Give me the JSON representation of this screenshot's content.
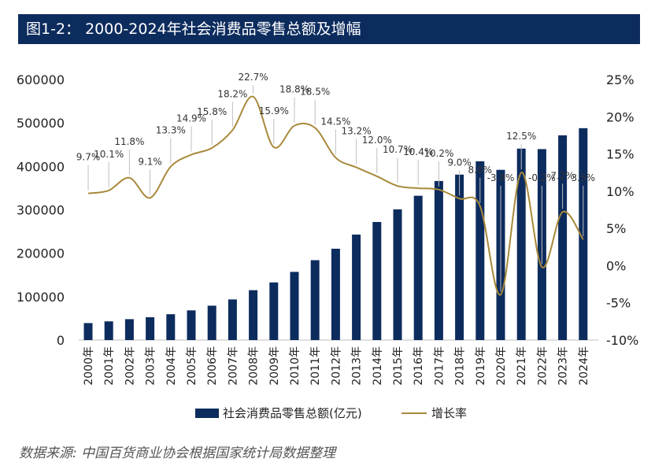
{
  "header": {
    "title": "图1-2：  2000-2024年社会消费品零售总额及增幅"
  },
  "source": "数据来源: 中国百货商业协会根据国家统计局数据整理",
  "chart_data": {
    "type": "bar+line",
    "categories": [
      "2000年",
      "2001年",
      "2002年",
      "2003年",
      "2004年",
      "2005年",
      "2006年",
      "2007年",
      "2008年",
      "2009年",
      "2010年",
      "2011年",
      "2012年",
      "2013年",
      "2014年",
      "2015年",
      "2016年",
      "2017年",
      "2018年",
      "2019年",
      "2020年",
      "2021年",
      "2022年",
      "2023年",
      "2024年"
    ],
    "series": [
      {
        "name": "社会消费品零售总额(亿元)",
        "axis": "left",
        "type": "bar",
        "color": "#0d2c5e",
        "values": [
          39106,
          43055,
          48136,
          52516,
          59501,
          68353,
          79145,
          93572,
          114830,
          132678,
          156998,
          183919,
          210307,
          242843,
          271896,
          300931,
          332316,
          366262,
          380987,
          411649,
          391981,
          440823,
          439733,
          471495,
          487895
        ]
      },
      {
        "name": "增长率",
        "axis": "right",
        "type": "line",
        "color": "#a8893b",
        "values": [
          9.7,
          10.1,
          11.8,
          9.1,
          13.3,
          14.9,
          15.8,
          18.2,
          22.7,
          15.9,
          18.8,
          18.5,
          14.5,
          13.2,
          12.0,
          10.7,
          10.4,
          10.2,
          9.0,
          8.0,
          -3.9,
          12.5,
          -0.2,
          7.2,
          3.5
        ],
        "labels": [
          "9.7%",
          "10.1%",
          "11.8%",
          "9.1%",
          "13.3%",
          "14.9%",
          "15.8%",
          "18.2%",
          "22.7%",
          "15.9%",
          "18.8%",
          "18.5%",
          "14.5%",
          "13.2%",
          "12.0%",
          "10.7%",
          "10.4%",
          "10.2%",
          "9.0%",
          "8.0%",
          "-3.9%",
          "12.5%",
          "-0.2%",
          "7.2%",
          "3.5%"
        ]
      }
    ],
    "y_left": {
      "ylim": [
        0,
        600000
      ],
      "ticks": [
        "0",
        "100000",
        "200000",
        "300000",
        "400000",
        "500000",
        "600000"
      ]
    },
    "y_right": {
      "ylim": [
        -10,
        25
      ],
      "ticks": [
        "-10%",
        "-5%",
        "0%",
        "5%",
        "10%",
        "15%",
        "20%",
        "25%"
      ]
    },
    "legend": {
      "position": "bottom",
      "items": [
        "社会消费品零售总额(亿元)",
        "增长率"
      ]
    },
    "grid": false
  }
}
